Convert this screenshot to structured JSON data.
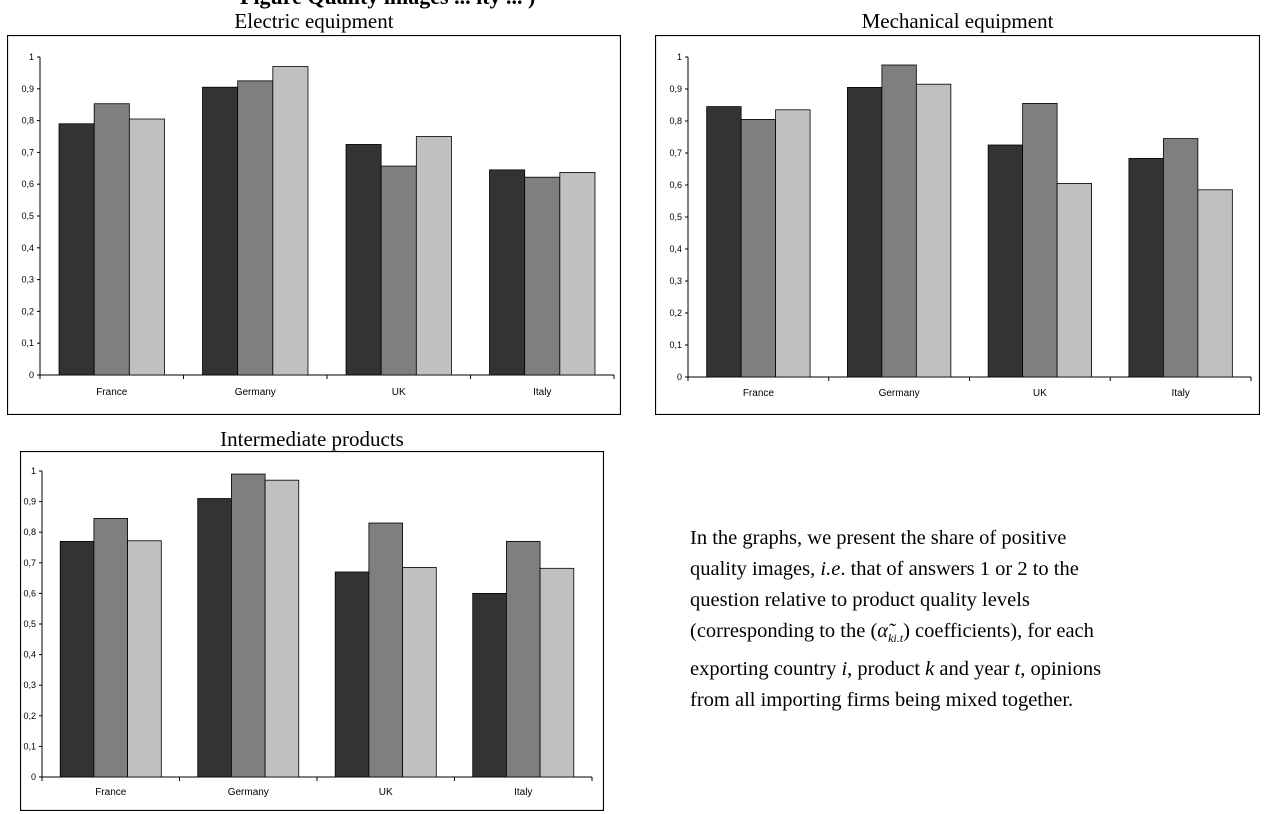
{
  "colors": {
    "series1": "#333333",
    "series2": "#7f7f7f",
    "series3": "#c0c0c0",
    "border": "#000000"
  },
  "header": {
    "fragment": "Figure Quality images ... ity ... )"
  },
  "chart_data": [
    {
      "type": "bar",
      "title": "Electric equipment",
      "categories": [
        "France",
        "Germany",
        "UK",
        "Italy"
      ],
      "series": [
        {
          "values": [
            0.79,
            0.905,
            0.725,
            0.645
          ]
        },
        {
          "values": [
            0.853,
            0.925,
            0.657,
            0.622
          ]
        },
        {
          "values": [
            0.805,
            0.97,
            0.75,
            0.637
          ]
        }
      ],
      "ylim": [
        0,
        1
      ],
      "yticks": [
        "0",
        "0,1",
        "0,2",
        "0,3",
        "0,4",
        "0,5",
        "0,6",
        "0,7",
        "0,8",
        "0,9",
        "1"
      ],
      "grid": false
    },
    {
      "type": "bar",
      "title": "Mechanical equipment",
      "categories": [
        "France",
        "Germany",
        "UK",
        "Italy"
      ],
      "series": [
        {
          "values": [
            0.845,
            0.905,
            0.725,
            0.683
          ]
        },
        {
          "values": [
            0.805,
            0.975,
            0.855,
            0.745
          ]
        },
        {
          "values": [
            0.835,
            0.915,
            0.605,
            0.585
          ]
        }
      ],
      "ylim": [
        0,
        1
      ],
      "yticks": [
        "0",
        "0,1",
        "0,2",
        "0,3",
        "0,4",
        "0,5",
        "0,6",
        "0,7",
        "0,8",
        "0,9",
        "1"
      ],
      "grid": false
    },
    {
      "type": "bar",
      "title": "Intermediate products",
      "categories": [
        "France",
        "Germany",
        "UK",
        "Italy"
      ],
      "series": [
        {
          "values": [
            0.77,
            0.91,
            0.67,
            0.6
          ]
        },
        {
          "values": [
            0.845,
            0.99,
            0.83,
            0.77
          ]
        },
        {
          "values": [
            0.772,
            0.97,
            0.685,
            0.682
          ]
        }
      ],
      "ylim": [
        0,
        1
      ],
      "yticks": [
        "0",
        "0,1",
        "0,2",
        "0,3",
        "0,4",
        "0,5",
        "0,6",
        "0,7",
        "0,8",
        "0,9",
        "1"
      ],
      "grid": false
    }
  ],
  "caption": {
    "l1": "In the graphs, we present the share of positive",
    "l2a": "quality images, ",
    "l2b": "i.e",
    "l2c": ". that of answers 1 or 2 to the",
    "l3": "question relative to product quality levels",
    "l4a": "(corresponding to the (",
    "l4sym": "α̃",
    "l4sub": "ki.t",
    "l4b": ") coefficients), for each",
    "l5a": "exporting country ",
    "l5i": "i",
    "l5b": ", product ",
    "l5k": "k",
    "l5c": " and year ",
    "l5t": "t",
    "l5d": ", opinions",
    "l6": "from all importing firms being mixed together."
  }
}
